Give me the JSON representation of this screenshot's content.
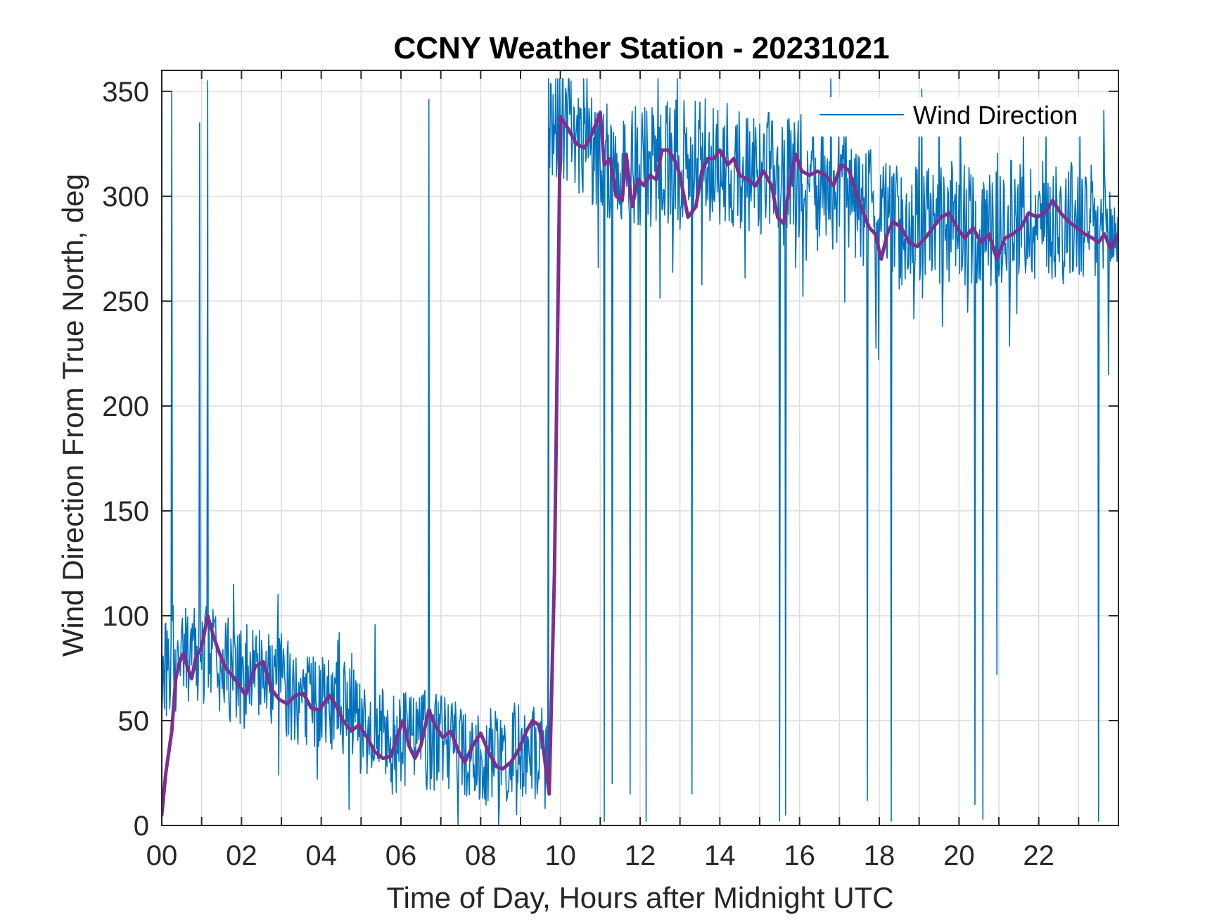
{
  "chart_data": {
    "type": "line",
    "title": "CCNY Weather Station - 20231021",
    "xlabel": "Time of Day, Hours after Midnight UTC",
    "ylabel": "Wind Direction From True North, deg",
    "xlim": [
      0,
      24
    ],
    "ylim": [
      0,
      360
    ],
    "grid": true,
    "x_ticks": [
      0,
      2,
      4,
      6,
      8,
      10,
      12,
      14,
      16,
      18,
      20,
      22
    ],
    "x_tick_labels": [
      "00",
      "02",
      "04",
      "06",
      "08",
      "10",
      "12",
      "14",
      "16",
      "18",
      "20",
      "22"
    ],
    "y_ticks": [
      0,
      50,
      100,
      150,
      200,
      250,
      300,
      350
    ],
    "y_tick_labels": [
      "0",
      "50",
      "100",
      "150",
      "200",
      "250",
      "300",
      "350"
    ],
    "legend": {
      "position": "top-right",
      "entries": [
        "Wind Direction"
      ]
    },
    "colors": {
      "raw": "#0072BD",
      "smooth": "#7E2F8E",
      "axis": "#262626",
      "grid": "#dcdcdc"
    },
    "series": [
      {
        "name": "Wind Direction",
        "style": "raw",
        "segments": [
          {
            "x_start": 0.0,
            "x_end": 9.7,
            "baseline": [
              [
                0,
                75
              ],
              [
                0.5,
                78
              ],
              [
                1.2,
                82
              ],
              [
                2,
                70
              ],
              [
                2.8,
                72
              ],
              [
                3.5,
                60
              ],
              [
                4.3,
                58
              ],
              [
                5,
                48
              ],
              [
                5.8,
                38
              ],
              [
                6.5,
                42
              ],
              [
                7.5,
                35
              ],
              [
                8.5,
                33
              ],
              [
                9.3,
                38
              ],
              [
                9.7,
                30
              ]
            ],
            "spread": 24
          },
          {
            "x_start": 9.7,
            "x_end": 24.0,
            "baseline": [
              [
                9.7,
                338
              ],
              [
                10.5,
                332
              ],
              [
                11.2,
                318
              ],
              [
                12,
                312
              ],
              [
                13,
                318
              ],
              [
                14,
                316
              ],
              [
                15,
                310
              ],
              [
                16,
                310
              ],
              [
                17,
                305
              ],
              [
                17.8,
                292
              ],
              [
                18.5,
                285
              ],
              [
                19.5,
                288
              ],
              [
                20.5,
                285
              ],
              [
                21.5,
                288
              ],
              [
                22.5,
                290
              ],
              [
                23.3,
                285
              ],
              [
                24,
                280
              ]
            ],
            "spread": 30
          }
        ],
        "spikes": [
          {
            "x": 0.25,
            "y": 350
          },
          {
            "x": 0.95,
            "y": 335
          },
          {
            "x": 1.15,
            "y": 355
          },
          {
            "x": 6.7,
            "y": 346
          },
          {
            "x": 11.1,
            "y": 2
          },
          {
            "x": 11.3,
            "y": 20
          },
          {
            "x": 11.75,
            "y": 15
          },
          {
            "x": 12.15,
            "y": 2
          },
          {
            "x": 13.3,
            "y": 15
          },
          {
            "x": 15.5,
            "y": 2
          },
          {
            "x": 15.65,
            "y": 5
          },
          {
            "x": 17.7,
            "y": 12
          },
          {
            "x": 18.3,
            "y": 2
          },
          {
            "x": 20.4,
            "y": 10
          },
          {
            "x": 20.6,
            "y": 3
          },
          {
            "x": 20.95,
            "y": 72
          },
          {
            "x": 23.5,
            "y": 2
          },
          {
            "x": 23.75,
            "y": 215
          }
        ]
      },
      {
        "name": "Smoothed",
        "style": "smooth",
        "x": [
          0,
          0.1,
          0.25,
          0.35,
          0.45,
          0.55,
          0.65,
          0.75,
          0.85,
          1.0,
          1.15,
          1.3,
          1.45,
          1.6,
          1.75,
          1.9,
          2.1,
          2.35,
          2.55,
          2.75,
          2.95,
          3.15,
          3.35,
          3.55,
          3.75,
          3.95,
          4.2,
          4.35,
          4.55,
          4.75,
          4.95,
          5.15,
          5.35,
          5.55,
          5.75,
          5.9,
          6.05,
          6.2,
          6.35,
          6.5,
          6.7,
          6.85,
          7.05,
          7.25,
          7.45,
          7.6,
          7.8,
          8.0,
          8.2,
          8.4,
          8.55,
          8.75,
          8.95,
          9.15,
          9.3,
          9.45,
          9.55,
          9.65,
          9.72,
          9.85,
          10.0,
          10.2,
          10.4,
          10.6,
          10.8,
          11.0,
          11.1,
          11.25,
          11.4,
          11.55,
          11.65,
          11.8,
          11.95,
          12.1,
          12.25,
          12.4,
          12.55,
          12.7,
          12.85,
          13.0,
          13.2,
          13.4,
          13.55,
          13.7,
          13.85,
          14.0,
          14.2,
          14.35,
          14.5,
          14.7,
          14.9,
          15.1,
          15.3,
          15.45,
          15.6,
          15.75,
          15.9,
          16.05,
          16.25,
          16.45,
          16.65,
          16.85,
          17.05,
          17.25,
          17.45,
          17.6,
          17.75,
          17.9,
          18.05,
          18.2,
          18.35,
          18.55,
          18.75,
          18.95,
          19.15,
          19.35,
          19.55,
          19.75,
          19.95,
          20.15,
          20.35,
          20.55,
          20.75,
          20.95,
          21.15,
          21.35,
          21.55,
          21.75,
          21.95,
          22.15,
          22.35,
          22.55,
          22.75,
          22.95,
          23.15,
          23.35,
          23.5,
          23.65,
          23.8,
          24.0
        ],
        "y": [
          5,
          25,
          45,
          70,
          78,
          82,
          75,
          70,
          80,
          85,
          100,
          90,
          82,
          75,
          72,
          68,
          62,
          76,
          78,
          65,
          60,
          58,
          62,
          63,
          56,
          55,
          62,
          58,
          50,
          45,
          48,
          42,
          35,
          32,
          33,
          42,
          50,
          38,
          32,
          38,
          55,
          48,
          42,
          45,
          35,
          30,
          38,
          44,
          35,
          28,
          27,
          30,
          36,
          45,
          50,
          48,
          40,
          25,
          15,
          120,
          338,
          332,
          325,
          323,
          330,
          340,
          315,
          318,
          300,
          298,
          320,
          295,
          308,
          305,
          310,
          308,
          322,
          322,
          318,
          310,
          290,
          295,
          312,
          318,
          318,
          322,
          315,
          318,
          310,
          308,
          305,
          312,
          305,
          290,
          287,
          305,
          320,
          312,
          310,
          312,
          310,
          305,
          315,
          312,
          300,
          292,
          285,
          282,
          270,
          282,
          288,
          285,
          278,
          276,
          280,
          285,
          290,
          292,
          285,
          280,
          285,
          278,
          282,
          270,
          280,
          282,
          285,
          292,
          290,
          292,
          298,
          292,
          288,
          285,
          282,
          280,
          278,
          282,
          275,
          282
        ]
      }
    ]
  }
}
